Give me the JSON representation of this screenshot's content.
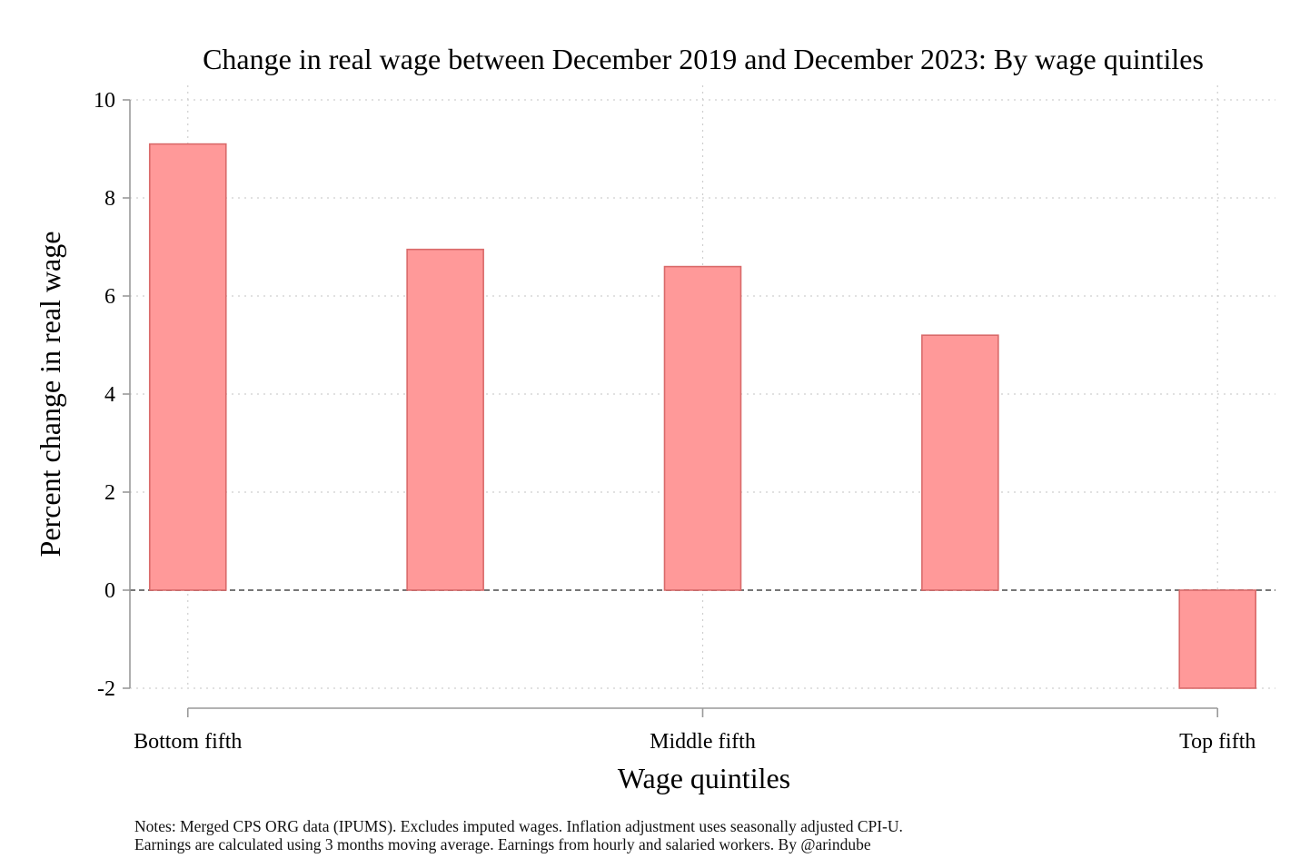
{
  "chart_data": {
    "type": "bar",
    "title": "Change in real wage between December 2019 and December 2023: By wage quintiles",
    "xlabel": "Wage quintiles",
    "ylabel": "Percent change in real wage",
    "x": [
      1,
      2,
      3,
      4,
      5
    ],
    "values": [
      9.1,
      6.95,
      6.6,
      5.2,
      -2.0
    ],
    "xticks": [
      {
        "x": 1,
        "label": "Bottom fifth"
      },
      {
        "x": 3,
        "label": "Middle fifth"
      },
      {
        "x": 5,
        "label": "Top fifth"
      }
    ],
    "yticks": [
      -2,
      0,
      2,
      4,
      6,
      8,
      10
    ],
    "ylim": [
      -2,
      10
    ],
    "xlim": [
      0.775,
      5.225
    ],
    "grid": true,
    "reference_line": {
      "y": 0,
      "style": "dashed"
    },
    "bar_color": "#ff9999",
    "bar_edge_color": "#d96a6a"
  },
  "notes": [
    "Notes: Merged CPS ORG data (IPUMS). Excludes imputed wages. Inflation adjustment uses seasonally adjusted CPI-U.",
    "Earnings are calculated using 3 months moving average. Earnings from hourly and salaried workers. By @arindube"
  ]
}
